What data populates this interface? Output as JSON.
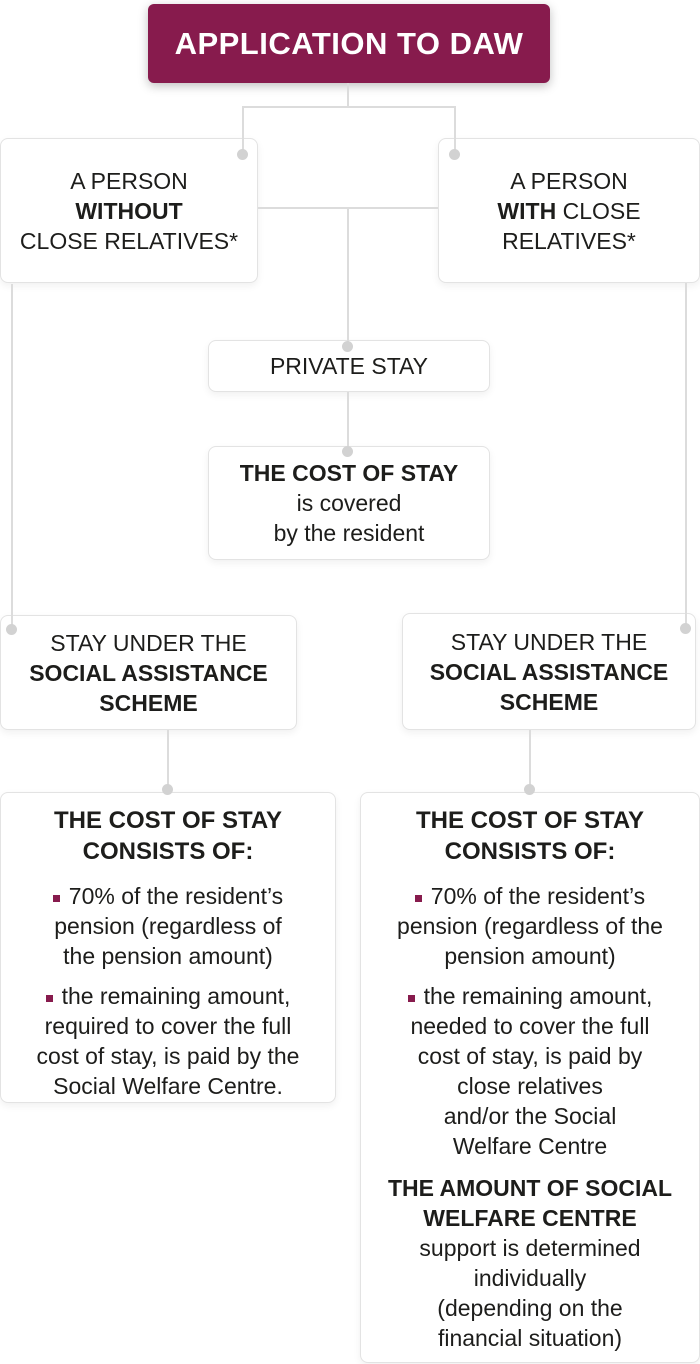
{
  "colors": {
    "accent": "#871b4d",
    "text": "#1d1d1b",
    "connector_line": "#dcdcdc",
    "connector_dot": "#d2d2d2",
    "box_border": "#e3e3e3",
    "background": "#ffffff"
  },
  "header": {
    "title": "APPLICATION TO DAW"
  },
  "nodes": {
    "person_without": {
      "lines": [
        [
          {
            "t": "A PERSON",
            "b": false
          }
        ],
        [
          {
            "t": "WITHOUT",
            "b": true
          }
        ],
        [
          {
            "t": "CLOSE RELATIVES*",
            "b": false
          }
        ]
      ]
    },
    "person_with": {
      "lines": [
        [
          {
            "t": "A PERSON",
            "b": false
          }
        ],
        [
          {
            "t": "WITH",
            "b": true
          },
          {
            "t": " CLOSE",
            "b": false
          }
        ],
        [
          {
            "t": "RELATIVES*",
            "b": false
          }
        ]
      ]
    },
    "private_stay": {
      "lines": [
        [
          {
            "t": "PRIVATE STAY",
            "b": false
          }
        ]
      ]
    },
    "cost_private": {
      "lines": [
        [
          {
            "t": "THE COST OF STAY",
            "b": true
          }
        ],
        [
          {
            "t": "is covered",
            "b": false
          }
        ],
        [
          {
            "t": "by the resident",
            "b": false
          }
        ]
      ]
    },
    "scheme_left": {
      "lines": [
        [
          {
            "t": "STAY UNDER THE",
            "b": false
          }
        ],
        [
          {
            "t": "SOCIAL ASSISTANCE",
            "b": true
          }
        ],
        [
          {
            "t": "SCHEME",
            "b": true
          }
        ]
      ]
    },
    "scheme_right": {
      "lines": [
        [
          {
            "t": "STAY UNDER THE",
            "b": false
          }
        ],
        [
          {
            "t": "SOCIAL ASSISTANCE",
            "b": true
          }
        ],
        [
          {
            "t": "SCHEME",
            "b": true
          }
        ]
      ]
    },
    "cost_scheme_left": {
      "heading_lines": [
        [
          {
            "t": "THE COST OF STAY",
            "b": true
          }
        ],
        [
          {
            "t": "CONSISTS OF:",
            "b": true
          }
        ]
      ],
      "bullets": [
        {
          "lines": [
            "70% of the resident’s",
            "pension (regardless of",
            "the pension amount)"
          ]
        },
        {
          "lines": [
            "the remaining amount,",
            "required to cover the full",
            "cost of stay, is paid by the",
            "Social Welfare Centre."
          ]
        }
      ]
    },
    "cost_scheme_right": {
      "heading_lines": [
        [
          {
            "t": "THE COST OF STAY",
            "b": true
          }
        ],
        [
          {
            "t": "CONSISTS OF:",
            "b": true
          }
        ]
      ],
      "bullets": [
        {
          "lines": [
            "70% of the resident’s",
            "pension (regardless of the",
            "pension amount)"
          ]
        },
        {
          "lines": [
            "the remaining amount,",
            "needed to cover the full",
            "cost of stay, is paid by",
            "close relatives",
            "and/or the Social",
            "Welfare Centre"
          ]
        }
      ],
      "footer_lines": [
        [
          {
            "t": "THE AMOUNT OF SOCIAL",
            "b": true
          }
        ],
        [
          {
            "t": "WELFARE CENTRE",
            "b": true
          }
        ],
        [
          {
            "t": "support is determined",
            "b": false
          }
        ],
        [
          {
            "t": "individually",
            "b": false
          }
        ],
        [
          {
            "t": "(depending on the",
            "b": false
          }
        ],
        [
          {
            "t": "financial situation)",
            "b": false
          }
        ]
      ]
    }
  }
}
